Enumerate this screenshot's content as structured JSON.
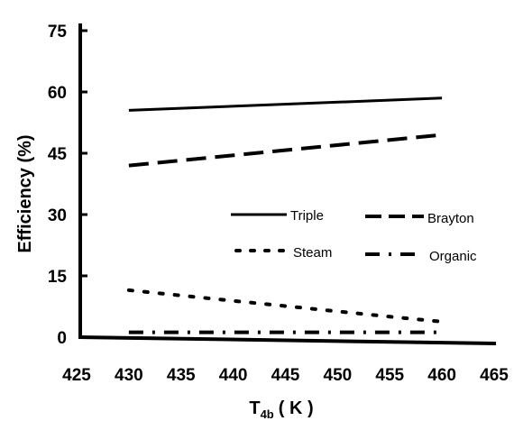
{
  "chart_data": {
    "type": "line",
    "title": "",
    "xlabel": {
      "main": "T",
      "sub": "4b",
      "unit": "( K )"
    },
    "ylabel": "Efficiency  (%)",
    "xlim": [
      425,
      465
    ],
    "ylim": [
      0,
      75
    ],
    "x_ticks": [
      "425",
      "430",
      "435",
      "440",
      "445",
      "450",
      "455",
      "460",
      "465"
    ],
    "y_ticks": [
      "0",
      "15",
      "30",
      "45",
      "60",
      "75"
    ],
    "grid": false,
    "legend_position": "center-right",
    "series": [
      {
        "name": "Triple",
        "style": "solid",
        "x": [
          430,
          460
        ],
        "y": [
          55.5,
          58.5
        ]
      },
      {
        "name": "Brayton",
        "style": "long-dash",
        "x": [
          430,
          460
        ],
        "y": [
          42,
          49.5
        ]
      },
      {
        "name": "Steam",
        "style": "dotted",
        "x": [
          430,
          435,
          440,
          445,
          450,
          455,
          460
        ],
        "y": [
          11.5,
          10.2,
          8.9,
          7.6,
          6.3,
          5.0,
          3.8
        ]
      },
      {
        "name": "Organic",
        "style": "dash-dot",
        "x": [
          430,
          460
        ],
        "y": [
          1.2,
          1.2
        ]
      }
    ]
  }
}
